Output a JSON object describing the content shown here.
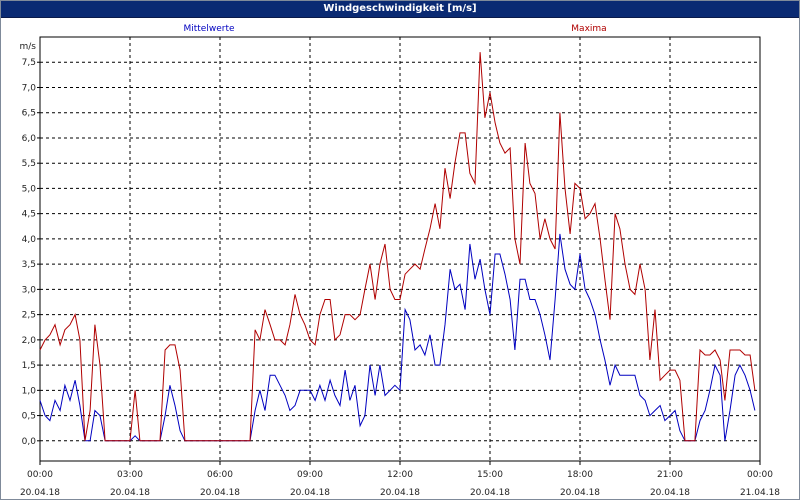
{
  "window": {
    "title": "Windgeschwindigkeit [m/s]"
  },
  "chart_data": {
    "type": "line",
    "title": "Windgeschwindigkeit [m/s]",
    "ylabel": "m/s",
    "ylim": [
      -0.4,
      8.0
    ],
    "xlim": [
      0,
      24
    ],
    "yticks": [
      "0,0",
      "0,5",
      "1,0",
      "1,5",
      "2,0",
      "2,5",
      "3,0",
      "3,5",
      "4,0",
      "4,5",
      "5,0",
      "5,5",
      "6,0",
      "6,5",
      "7,0",
      "7,5"
    ],
    "xticks": [
      {
        "time": "00:00",
        "date": "20.04.18"
      },
      {
        "time": "03:00",
        "date": "20.04.18"
      },
      {
        "time": "06:00",
        "date": "20.04.18"
      },
      {
        "time": "09:00",
        "date": "20.04.18"
      },
      {
        "time": "12:00",
        "date": "20.04.18"
      },
      {
        "time": "15:00",
        "date": "20.04.18"
      },
      {
        "time": "18:00",
        "date": "20.04.18"
      },
      {
        "time": "21:00",
        "date": "20.04.18"
      },
      {
        "time": "00:00",
        "date": "21.04.18"
      }
    ],
    "grid": true,
    "legend_position": "top",
    "series": [
      {
        "name": "Mittelwerte",
        "color": "#0000c0",
        "points": [
          [
            0.0,
            0.8
          ],
          [
            0.17,
            0.5
          ],
          [
            0.33,
            0.4
          ],
          [
            0.5,
            0.8
          ],
          [
            0.67,
            0.6
          ],
          [
            0.83,
            1.1
          ],
          [
            1.0,
            0.8
          ],
          [
            1.17,
            1.2
          ],
          [
            1.33,
            0.7
          ],
          [
            1.5,
            0.0
          ],
          [
            1.67,
            0.0
          ],
          [
            1.83,
            0.6
          ],
          [
            2.0,
            0.5
          ],
          [
            2.17,
            0.0
          ],
          [
            2.5,
            0.0
          ],
          [
            3.0,
            0.0
          ],
          [
            3.17,
            0.1
          ],
          [
            3.33,
            0.0
          ],
          [
            4.0,
            0.0
          ],
          [
            4.17,
            0.5
          ],
          [
            4.33,
            1.1
          ],
          [
            4.5,
            0.7
          ],
          [
            4.67,
            0.2
          ],
          [
            4.83,
            0.0
          ],
          [
            5.5,
            0.0
          ],
          [
            6.0,
            0.0
          ],
          [
            6.5,
            0.0
          ],
          [
            7.0,
            0.0
          ],
          [
            7.17,
            0.6
          ],
          [
            7.33,
            1.0
          ],
          [
            7.5,
            0.6
          ],
          [
            7.67,
            1.3
          ],
          [
            7.83,
            1.3
          ],
          [
            8.0,
            1.1
          ],
          [
            8.17,
            0.9
          ],
          [
            8.33,
            0.6
          ],
          [
            8.5,
            0.7
          ],
          [
            8.67,
            1.0
          ],
          [
            8.83,
            1.0
          ],
          [
            9.0,
            1.0
          ],
          [
            9.17,
            0.8
          ],
          [
            9.33,
            1.1
          ],
          [
            9.5,
            0.8
          ],
          [
            9.67,
            1.2
          ],
          [
            9.83,
            0.9
          ],
          [
            10.0,
            0.7
          ],
          [
            10.17,
            1.4
          ],
          [
            10.33,
            0.8
          ],
          [
            10.5,
            1.1
          ],
          [
            10.67,
            0.3
          ],
          [
            10.83,
            0.5
          ],
          [
            11.0,
            1.5
          ],
          [
            11.17,
            0.9
          ],
          [
            11.33,
            1.5
          ],
          [
            11.5,
            0.9
          ],
          [
            11.67,
            1.0
          ],
          [
            11.83,
            1.1
          ],
          [
            12.0,
            1.0
          ],
          [
            12.17,
            2.6
          ],
          [
            12.33,
            2.4
          ],
          [
            12.5,
            1.8
          ],
          [
            12.67,
            1.9
          ],
          [
            12.83,
            1.7
          ],
          [
            13.0,
            2.1
          ],
          [
            13.17,
            1.5
          ],
          [
            13.33,
            1.5
          ],
          [
            13.5,
            2.3
          ],
          [
            13.67,
            3.4
          ],
          [
            13.83,
            3.0
          ],
          [
            14.0,
            3.1
          ],
          [
            14.17,
            2.6
          ],
          [
            14.33,
            3.9
          ],
          [
            14.5,
            3.2
          ],
          [
            14.67,
            3.6
          ],
          [
            14.83,
            3.0
          ],
          [
            15.0,
            2.5
          ],
          [
            15.17,
            3.7
          ],
          [
            15.33,
            3.7
          ],
          [
            15.5,
            3.3
          ],
          [
            15.67,
            2.8
          ],
          [
            15.83,
            1.8
          ],
          [
            16.0,
            3.2
          ],
          [
            16.17,
            3.2
          ],
          [
            16.33,
            2.8
          ],
          [
            16.5,
            2.8
          ],
          [
            16.67,
            2.5
          ],
          [
            16.83,
            2.1
          ],
          [
            17.0,
            1.6
          ],
          [
            17.17,
            2.8
          ],
          [
            17.33,
            4.1
          ],
          [
            17.5,
            3.4
          ],
          [
            17.67,
            3.1
          ],
          [
            17.83,
            3.0
          ],
          [
            18.0,
            3.7
          ],
          [
            18.17,
            3.0
          ],
          [
            18.33,
            2.8
          ],
          [
            18.5,
            2.5
          ],
          [
            18.67,
            2.0
          ],
          [
            18.83,
            1.6
          ],
          [
            19.0,
            1.1
          ],
          [
            19.17,
            1.5
          ],
          [
            19.33,
            1.3
          ],
          [
            19.5,
            1.3
          ],
          [
            19.67,
            1.3
          ],
          [
            19.83,
            1.3
          ],
          [
            20.0,
            0.9
          ],
          [
            20.17,
            0.8
          ],
          [
            20.33,
            0.5
          ],
          [
            20.5,
            0.6
          ],
          [
            20.67,
            0.7
          ],
          [
            20.83,
            0.4
          ],
          [
            21.0,
            0.5
          ],
          [
            21.17,
            0.6
          ],
          [
            21.33,
            0.2
          ],
          [
            21.5,
            0.0
          ],
          [
            21.67,
            0.0
          ],
          [
            21.83,
            0.0
          ],
          [
            22.0,
            0.4
          ],
          [
            22.17,
            0.6
          ],
          [
            22.33,
            1.0
          ],
          [
            22.5,
            1.5
          ],
          [
            22.67,
            1.3
          ],
          [
            22.83,
            0.0
          ],
          [
            23.0,
            0.6
          ],
          [
            23.17,
            1.3
          ],
          [
            23.33,
            1.5
          ],
          [
            23.5,
            1.3
          ],
          [
            23.67,
            1.0
          ],
          [
            23.83,
            0.6
          ]
        ]
      },
      {
        "name": "Maxima",
        "color": "#b00000",
        "points": [
          [
            0.0,
            1.8
          ],
          [
            0.17,
            2.0
          ],
          [
            0.33,
            2.1
          ],
          [
            0.5,
            2.3
          ],
          [
            0.67,
            1.9
          ],
          [
            0.83,
            2.2
          ],
          [
            1.0,
            2.3
          ],
          [
            1.17,
            2.5
          ],
          [
            1.33,
            2.0
          ],
          [
            1.5,
            0.0
          ],
          [
            1.67,
            0.6
          ],
          [
            1.83,
            2.3
          ],
          [
            2.0,
            1.5
          ],
          [
            2.17,
            0.0
          ],
          [
            2.5,
            0.0
          ],
          [
            3.0,
            0.0
          ],
          [
            3.17,
            1.0
          ],
          [
            3.33,
            0.0
          ],
          [
            4.0,
            0.0
          ],
          [
            4.17,
            1.8
          ],
          [
            4.33,
            1.9
          ],
          [
            4.5,
            1.9
          ],
          [
            4.67,
            1.4
          ],
          [
            4.83,
            0.0
          ],
          [
            5.5,
            0.0
          ],
          [
            6.0,
            0.0
          ],
          [
            6.5,
            0.0
          ],
          [
            7.0,
            0.0
          ],
          [
            7.17,
            2.2
          ],
          [
            7.33,
            2.0
          ],
          [
            7.5,
            2.6
          ],
          [
            7.67,
            2.3
          ],
          [
            7.83,
            2.0
          ],
          [
            8.0,
            2.0
          ],
          [
            8.17,
            1.9
          ],
          [
            8.33,
            2.3
          ],
          [
            8.5,
            2.9
          ],
          [
            8.67,
            2.5
          ],
          [
            8.83,
            2.3
          ],
          [
            9.0,
            2.0
          ],
          [
            9.17,
            1.9
          ],
          [
            9.33,
            2.5
          ],
          [
            9.5,
            2.8
          ],
          [
            9.67,
            2.8
          ],
          [
            9.83,
            2.0
          ],
          [
            10.0,
            2.1
          ],
          [
            10.17,
            2.5
          ],
          [
            10.33,
            2.5
          ],
          [
            10.5,
            2.4
          ],
          [
            10.67,
            2.5
          ],
          [
            10.83,
            3.0
          ],
          [
            11.0,
            3.5
          ],
          [
            11.17,
            2.8
          ],
          [
            11.33,
            3.5
          ],
          [
            11.5,
            3.9
          ],
          [
            11.67,
            3.0
          ],
          [
            11.83,
            2.8
          ],
          [
            12.0,
            2.8
          ],
          [
            12.17,
            3.3
          ],
          [
            12.33,
            3.4
          ],
          [
            12.5,
            3.5
          ],
          [
            12.67,
            3.4
          ],
          [
            12.83,
            3.8
          ],
          [
            13.0,
            4.2
          ],
          [
            13.17,
            4.7
          ],
          [
            13.33,
            4.2
          ],
          [
            13.5,
            5.4
          ],
          [
            13.67,
            4.8
          ],
          [
            13.83,
            5.5
          ],
          [
            14.0,
            6.1
          ],
          [
            14.17,
            6.1
          ],
          [
            14.33,
            5.3
          ],
          [
            14.5,
            5.1
          ],
          [
            14.67,
            7.7
          ],
          [
            14.83,
            6.4
          ],
          [
            15.0,
            6.9
          ],
          [
            15.17,
            6.3
          ],
          [
            15.33,
            5.9
          ],
          [
            15.5,
            5.7
          ],
          [
            15.67,
            5.8
          ],
          [
            15.83,
            4.0
          ],
          [
            16.0,
            3.5
          ],
          [
            16.17,
            5.9
          ],
          [
            16.33,
            5.1
          ],
          [
            16.5,
            4.9
          ],
          [
            16.67,
            4.0
          ],
          [
            16.83,
            4.4
          ],
          [
            17.0,
            4.0
          ],
          [
            17.17,
            3.8
          ],
          [
            17.33,
            6.5
          ],
          [
            17.5,
            5.0
          ],
          [
            17.67,
            4.1
          ],
          [
            17.83,
            5.1
          ],
          [
            18.0,
            5.0
          ],
          [
            18.17,
            4.4
          ],
          [
            18.33,
            4.5
          ],
          [
            18.5,
            4.7
          ],
          [
            18.67,
            4.0
          ],
          [
            18.83,
            3.2
          ],
          [
            19.0,
            2.4
          ],
          [
            19.17,
            4.5
          ],
          [
            19.33,
            4.2
          ],
          [
            19.5,
            3.5
          ],
          [
            19.67,
            3.0
          ],
          [
            19.83,
            2.9
          ],
          [
            20.0,
            3.5
          ],
          [
            20.17,
            3.0
          ],
          [
            20.33,
            1.6
          ],
          [
            20.5,
            2.6
          ],
          [
            20.67,
            1.2
          ],
          [
            20.83,
            1.3
          ],
          [
            21.0,
            1.4
          ],
          [
            21.17,
            1.4
          ],
          [
            21.33,
            1.2
          ],
          [
            21.5,
            0.0
          ],
          [
            21.67,
            0.0
          ],
          [
            21.83,
            0.0
          ],
          [
            22.0,
            1.8
          ],
          [
            22.17,
            1.7
          ],
          [
            22.33,
            1.7
          ],
          [
            22.5,
            1.8
          ],
          [
            22.67,
            1.6
          ],
          [
            22.83,
            0.8
          ],
          [
            23.0,
            1.8
          ],
          [
            23.17,
            1.8
          ],
          [
            23.33,
            1.8
          ],
          [
            23.5,
            1.7
          ],
          [
            23.67,
            1.7
          ],
          [
            23.83,
            1.0
          ]
        ]
      }
    ]
  }
}
